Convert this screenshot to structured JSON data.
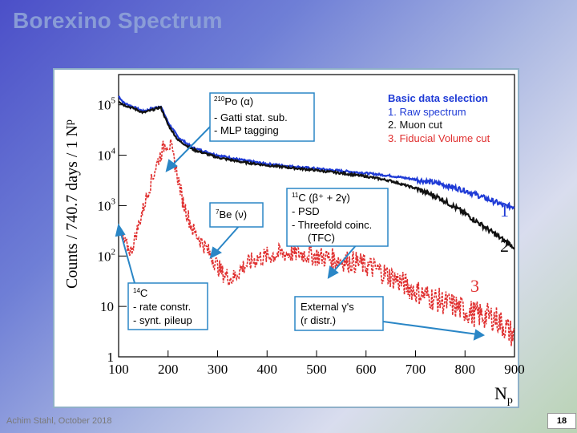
{
  "slide": {
    "title": "Borexino Spectrum",
    "footer": "Achim Stahl, October 2018",
    "page_number": "18"
  },
  "chart_data": {
    "type": "line",
    "xlabel": "N",
    "xlabel_sub": "p",
    "ylabel": "Counts / 740.7 days / 1 N",
    "ylabel_sub": "p",
    "xlim": [
      100,
      900
    ],
    "ylim_log10": [
      0,
      5.6
    ],
    "yscale": "log",
    "x_ticks": [
      "100",
      "200",
      "300",
      "400",
      "500",
      "600",
      "700",
      "800",
      "900"
    ],
    "y_ticks": [
      {
        "value": 1,
        "label": "1",
        "sup": ""
      },
      {
        "value": 10,
        "label": "10",
        "sup": ""
      },
      {
        "value": 100,
        "label": "10",
        "sup": "2"
      },
      {
        "value": 1000,
        "label": "10",
        "sup": "3"
      },
      {
        "value": 10000,
        "label": "10",
        "sup": "4"
      },
      {
        "value": 100000,
        "label": "10",
        "sup": "5"
      }
    ],
    "series": [
      {
        "name": "Raw spectrum",
        "label": "1",
        "color": "#1f3bd6",
        "x": [
          100,
          110,
          130,
          150,
          170,
          185,
          200,
          220,
          250,
          300,
          350,
          400,
          450,
          500,
          550,
          600,
          650,
          700,
          750,
          800,
          850,
          880,
          900
        ],
        "y": [
          150000,
          110000,
          90000,
          75000,
          85000,
          95000,
          45000,
          23000,
          14000,
          10000,
          8000,
          6700,
          6000,
          5400,
          4900,
          4400,
          3900,
          3300,
          2700,
          2000,
          1300,
          1000,
          950
        ]
      },
      {
        "name": "Muon cut",
        "label": "2",
        "color": "#111111",
        "x": [
          100,
          110,
          130,
          150,
          170,
          185,
          200,
          220,
          250,
          300,
          350,
          400,
          450,
          500,
          550,
          600,
          650,
          700,
          750,
          800,
          850,
          880,
          900
        ],
        "y": [
          120000,
          100000,
          85000,
          70000,
          80000,
          90000,
          40000,
          20000,
          13000,
          9000,
          7300,
          6300,
          5600,
          5000,
          4400,
          3800,
          3100,
          2200,
          1400,
          700,
          320,
          200,
          150
        ]
      },
      {
        "name": "Fiducial Volume cut",
        "label": "3",
        "color": "#e03030",
        "x": [
          100,
          110,
          125,
          140,
          160,
          180,
          195,
          205,
          215,
          230,
          250,
          270,
          290,
          310,
          330,
          350,
          380,
          420,
          460,
          500,
          540,
          580,
          620,
          660,
          700,
          740,
          780,
          820,
          860,
          880,
          900
        ],
        "y": [
          300,
          200,
          120,
          400,
          2000,
          8000,
          18000,
          15000,
          6000,
          1200,
          330,
          180,
          90,
          45,
          35,
          60,
          90,
          110,
          115,
          100,
          85,
          75,
          55,
          35,
          20,
          14,
          10,
          7,
          6,
          4,
          2.5
        ]
      }
    ],
    "legend": {
      "title": "Basic data selection",
      "items": [
        {
          "text": "1. Raw spectrum",
          "color": "#1f3bd6"
        },
        {
          "text": "2. Muon cut",
          "color": "#111111"
        },
        {
          "text": "3. Fiducial Volume cut",
          "color": "#e03030"
        }
      ]
    },
    "annotations": {
      "po210": {
        "sup": "210",
        "title": "Po (α)",
        "lines": [
          "- Gatti stat. sub.",
          "- MLP tagging"
        ]
      },
      "be7": {
        "sup": "7",
        "title": "Be (ν)"
      },
      "c11": {
        "sup": "11",
        "title": "C (β⁺ + 2γ)",
        "lines": [
          "- PSD",
          "- Threefold coinc.",
          "(TFC)"
        ]
      },
      "c14": {
        "sup": "14",
        "title": "C",
        "lines": [
          "- rate constr.",
          "- synt. pileup"
        ]
      },
      "external": {
        "title": "External γ's",
        "lines": [
          "(r distr.)"
        ]
      }
    }
  }
}
